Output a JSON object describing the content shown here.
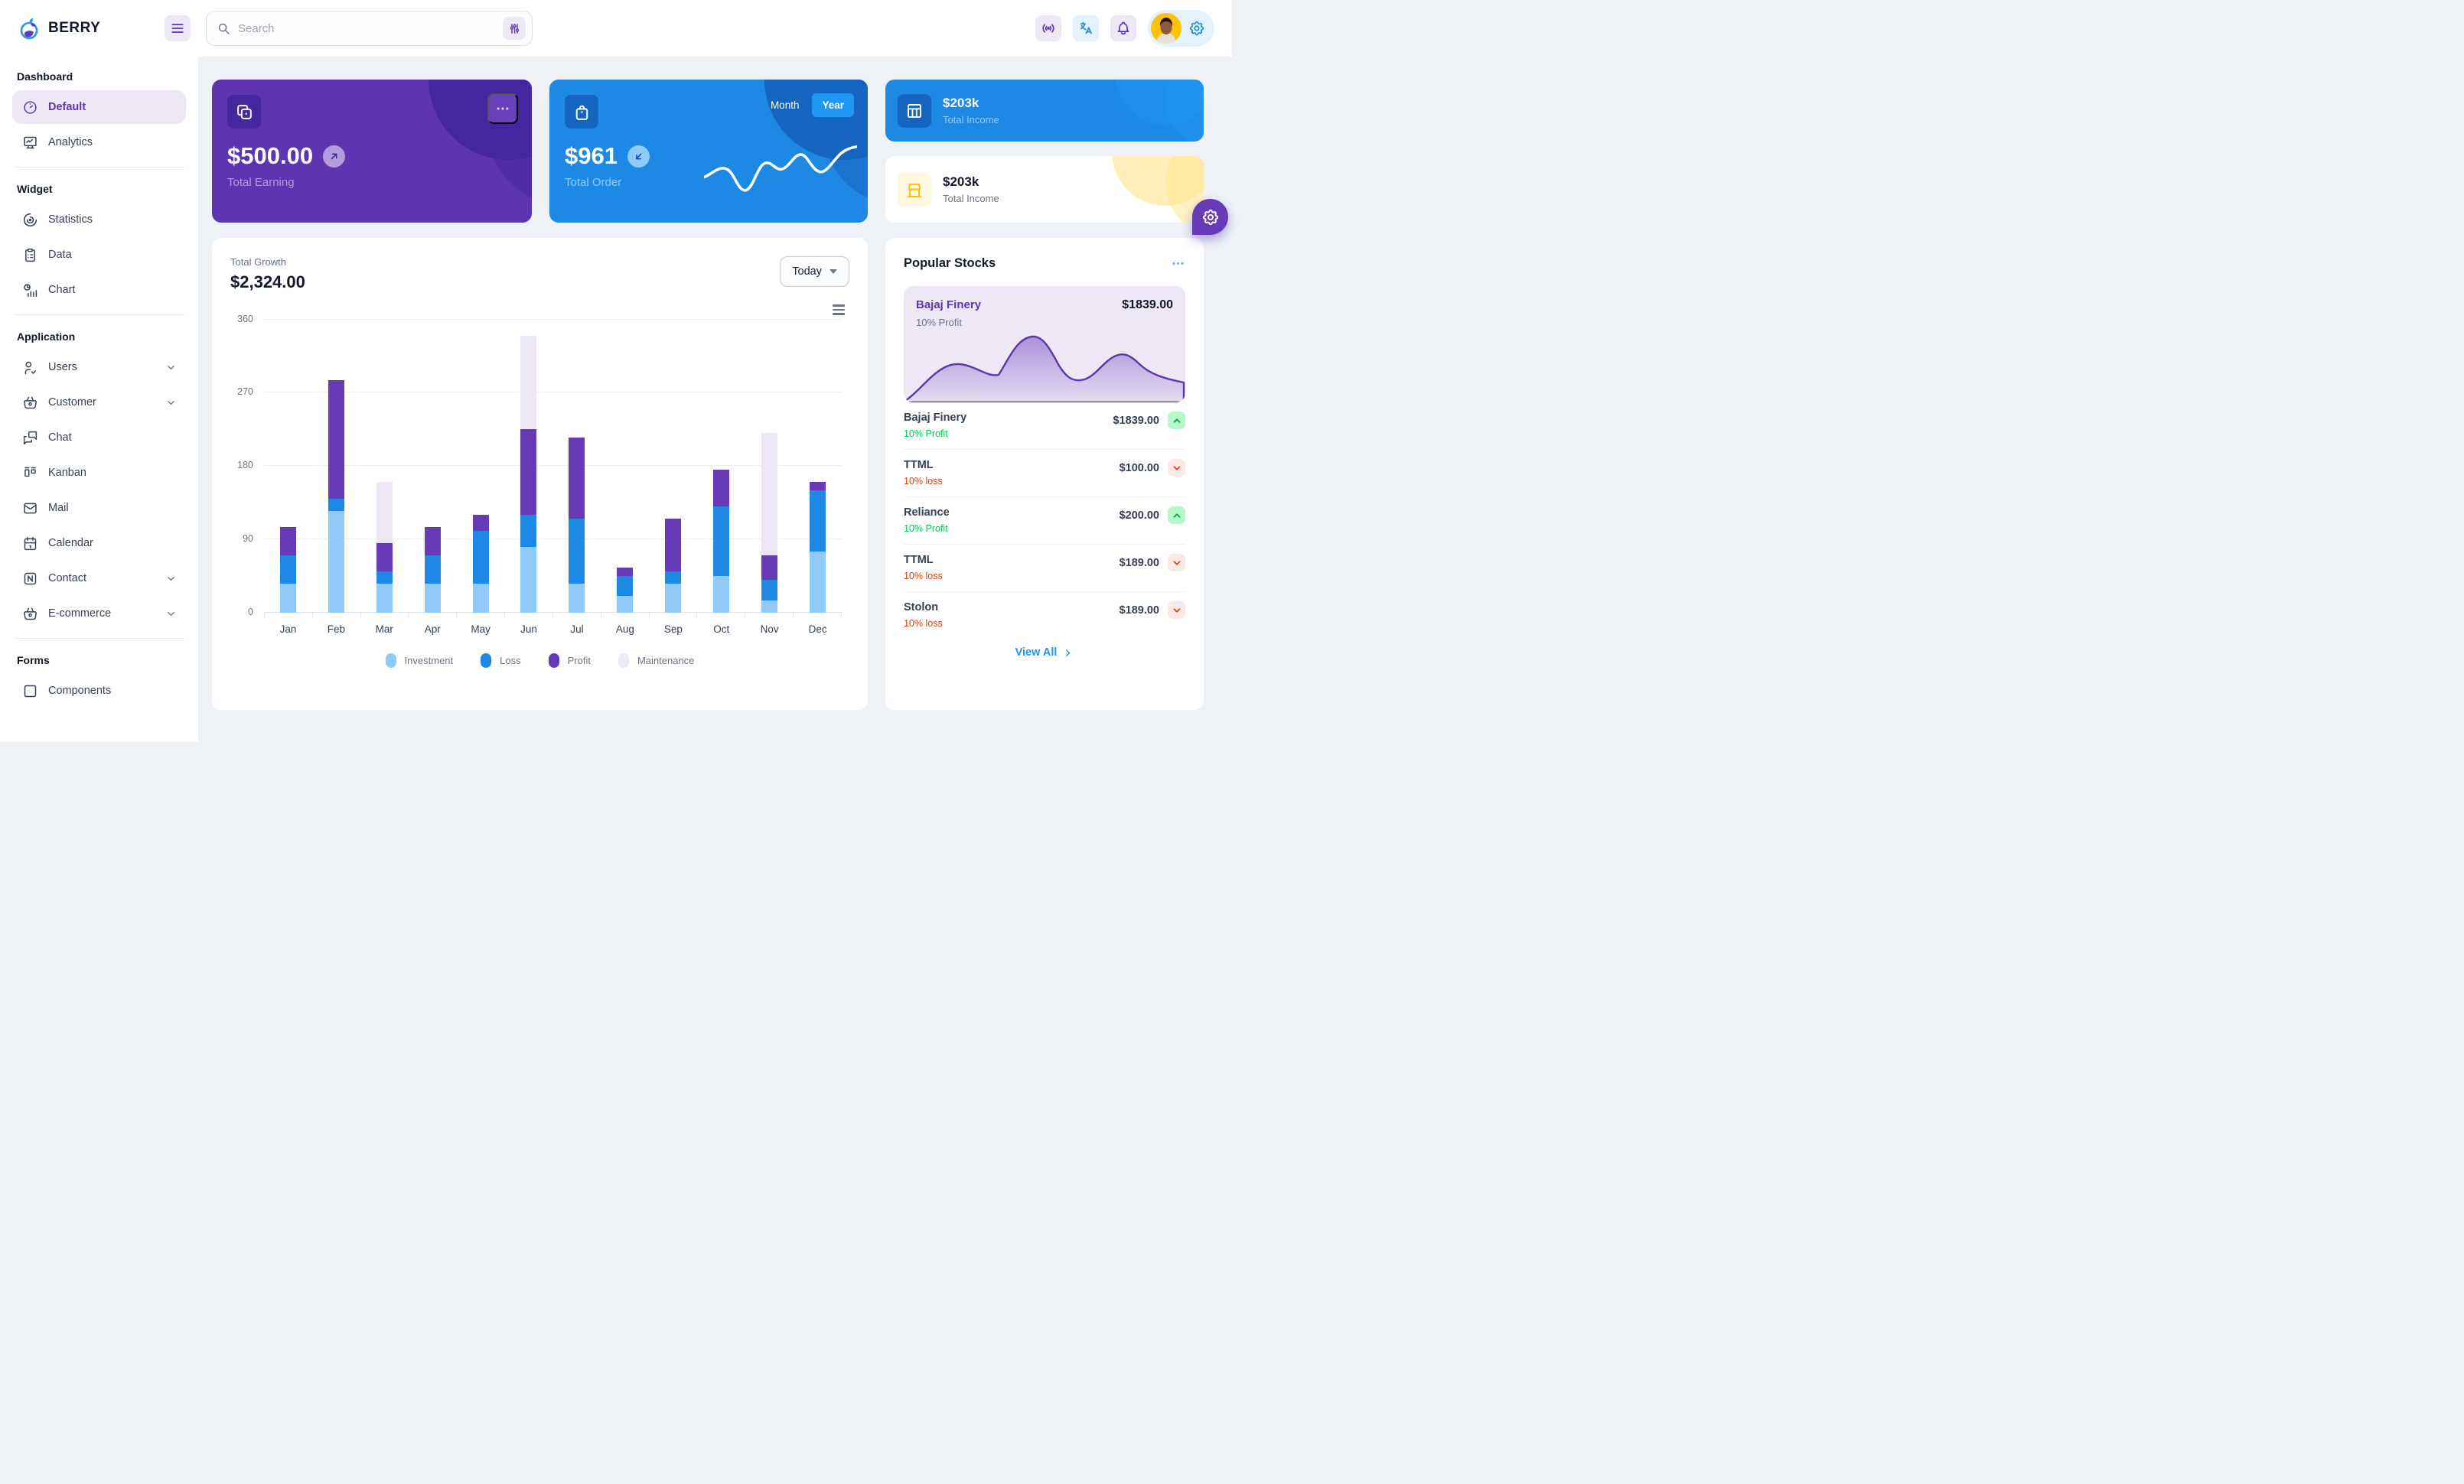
{
  "header": {
    "brand": "BERRY",
    "search_placeholder": "Search"
  },
  "sidebar": {
    "sections": [
      {
        "title": "Dashboard",
        "items": [
          {
            "label": "Default",
            "icon": "gauge-icon",
            "selected": true
          },
          {
            "label": "Analytics",
            "icon": "analytics-icon"
          }
        ]
      },
      {
        "title": "Widget",
        "items": [
          {
            "label": "Statistics",
            "icon": "statistics-icon"
          },
          {
            "label": "Data",
            "icon": "clipboard-icon"
          },
          {
            "label": "Chart",
            "icon": "chart-icon"
          }
        ]
      },
      {
        "title": "Application",
        "items": [
          {
            "label": "Users",
            "icon": "user-check-icon",
            "expandable": true
          },
          {
            "label": "Customer",
            "icon": "basket-icon",
            "expandable": true
          },
          {
            "label": "Chat",
            "icon": "messages-icon"
          },
          {
            "label": "Kanban",
            "icon": "kanban-icon"
          },
          {
            "label": "Mail",
            "icon": "mail-icon"
          },
          {
            "label": "Calendar",
            "icon": "calendar-icon"
          },
          {
            "label": "Contact",
            "icon": "contact-icon",
            "expandable": true
          },
          {
            "label": "E-commerce",
            "icon": "basket-icon",
            "expandable": true
          }
        ]
      },
      {
        "title": "Forms",
        "items": [
          {
            "label": "Components",
            "icon": "components-icon",
            "clipped": true
          }
        ]
      }
    ]
  },
  "cards": {
    "earning": {
      "amount": "$500.00",
      "label": "Total Earning"
    },
    "order": {
      "amount": "$961",
      "label": "Total Order",
      "toggle_month": "Month",
      "toggle_year": "Year",
      "selected": "Year"
    },
    "income_blue": {
      "amount": "$203k",
      "label": "Total Income"
    },
    "income_white": {
      "amount": "$203k",
      "label": "Total Income"
    }
  },
  "growth": {
    "label": "Total Growth",
    "amount": "$2,324.00",
    "range": "Today",
    "chart_data": {
      "type": "bar",
      "stacked": true,
      "categories": [
        "Jan",
        "Feb",
        "Mar",
        "Apr",
        "May",
        "Jun",
        "Jul",
        "Aug",
        "Sep",
        "Oct",
        "Nov",
        "Dec"
      ],
      "series": [
        {
          "name": "Investment",
          "color": "#90caf9",
          "values": [
            35,
            125,
            35,
            35,
            35,
            80,
            35,
            20,
            35,
            45,
            15,
            75
          ]
        },
        {
          "name": "Loss",
          "color": "#1e88e5",
          "values": [
            35,
            15,
            15,
            35,
            65,
            40,
            80,
            25,
            15,
            85,
            25,
            75
          ]
        },
        {
          "name": "Profit",
          "color": "#673ab7",
          "values": [
            35,
            145,
            35,
            35,
            20,
            105,
            100,
            10,
            65,
            45,
            30,
            10
          ]
        },
        {
          "name": "Maintenance",
          "color": "#ede7f6",
          "values": [
            0,
            0,
            75,
            0,
            0,
            115,
            0,
            0,
            0,
            0,
            150,
            0
          ]
        }
      ],
      "ylim": [
        0,
        360
      ],
      "yticks": [
        0,
        90,
        180,
        270,
        360
      ],
      "grid": true,
      "legend_position": "bottom"
    }
  },
  "stocks": {
    "title": "Popular Stocks",
    "featured": {
      "name": "Bajaj Finery",
      "price": "$1839.00",
      "sub": "10% Profit"
    },
    "rows": [
      {
        "name": "Bajaj Finery",
        "price": "$1839.00",
        "sub": "10% Profit",
        "direction": "up"
      },
      {
        "name": "TTML",
        "price": "$100.00",
        "sub": "10% loss",
        "direction": "down"
      },
      {
        "name": "Reliance",
        "price": "$200.00",
        "sub": "10% Profit",
        "direction": "up"
      },
      {
        "name": "TTML",
        "price": "$189.00",
        "sub": "10% loss",
        "direction": "down"
      },
      {
        "name": "Stolon",
        "price": "$189.00",
        "sub": "10% loss",
        "direction": "down"
      }
    ],
    "view_all": "View All"
  },
  "colors": {
    "background": "#eef2f6",
    "purple_card": "#5e35b1",
    "purple_deep": "#4527a0",
    "blue_card": "#1e88e5",
    "blue_deep": "#1565c0",
    "accent_blue": "#2196f3",
    "accent_purple": "#673ab7",
    "success_green": "#00c853",
    "loss_orange": "#d84315",
    "warning_yellow": "#ffc107"
  }
}
